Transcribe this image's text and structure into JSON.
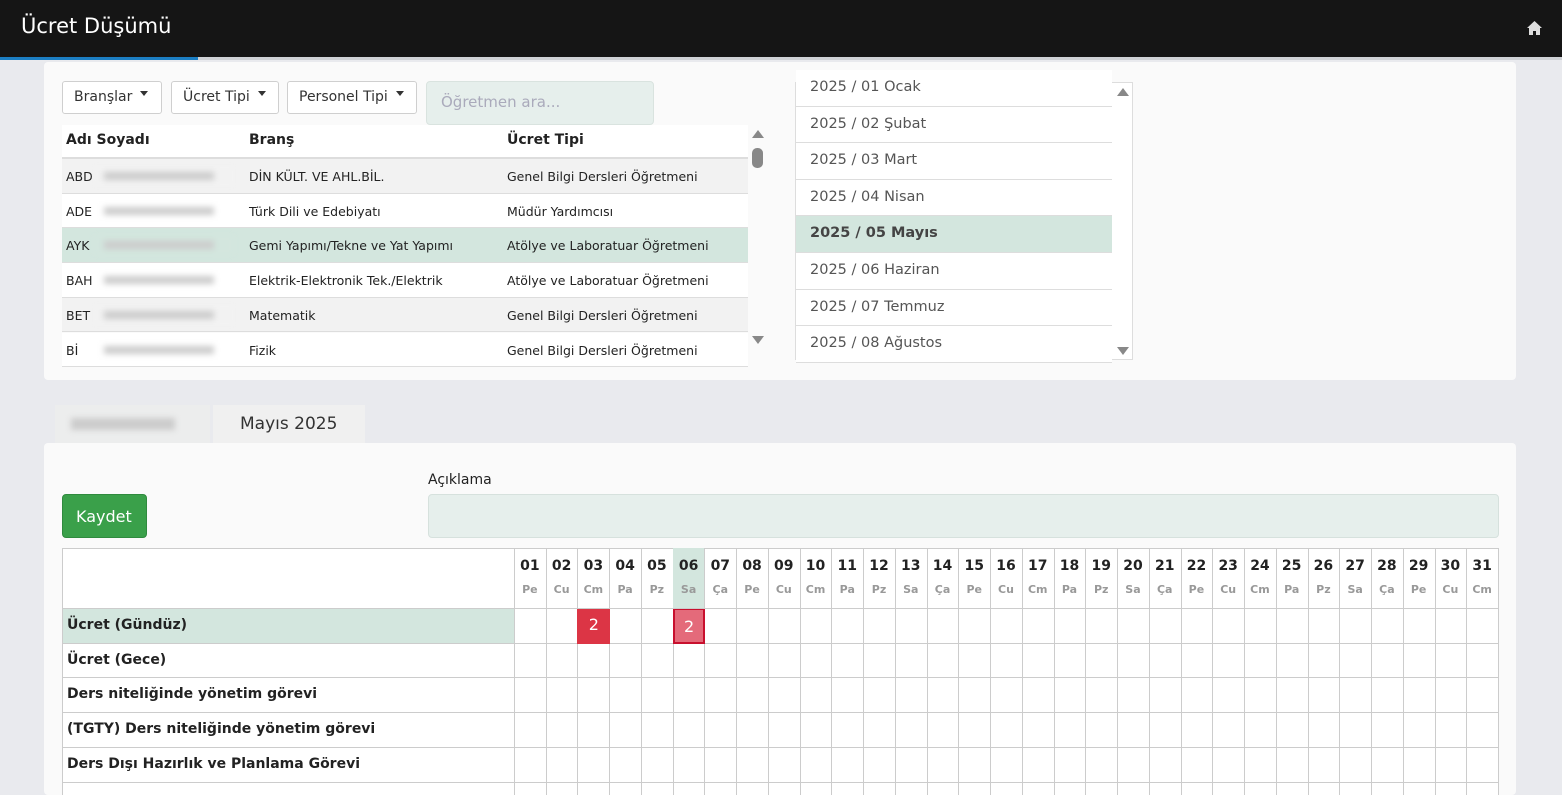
{
  "header": {
    "title": "Ücret Düşümü"
  },
  "filters": {
    "dropdowns": [
      "Branşlar",
      "Ücret Tipi",
      "Personel Tipi"
    ],
    "search_placeholder": "Öğretmen ara..."
  },
  "teachers": {
    "columns": [
      "Adı Soyadı",
      "Branş",
      "Ücret Tipi"
    ],
    "selected": 2,
    "rows": [
      [
        "ABD",
        "DİN KÜLT. VE AHL.BİL.",
        "Genel Bilgi Dersleri Öğretmeni"
      ],
      [
        "ADE",
        "Türk Dili ve Edebiyatı",
        "Müdür Yardımcısı"
      ],
      [
        "AYK",
        "Gemi Yapımı/Tekne ve Yat Yapımı",
        "Atölye ve Laboratuar Öğretmeni"
      ],
      [
        "BAH",
        "Elektrik-Elektronik Tek./Elektrik",
        "Atölye ve Laboratuar Öğretmeni"
      ],
      [
        "BET",
        "Matematik",
        "Genel Bilgi Dersleri Öğretmeni"
      ],
      [
        "Bİ",
        "Fizik",
        "Genel Bilgi Dersleri Öğretmeni"
      ]
    ]
  },
  "months": {
    "selected": 4,
    "items": [
      "2025 / 01 Ocak",
      "2025 / 02 Şubat",
      "2025 / 03 Mart",
      "2025 / 04 Nisan",
      "2025 / 05 Mayıs",
      "2025 / 06 Haziran",
      "2025 / 07 Temmuz",
      "2025 / 08 Ağustos"
    ]
  },
  "tabs": [
    "Mayıs 2025"
  ],
  "form": {
    "description_label": "Açıklama",
    "save_button": "Kaydet"
  },
  "grid": {
    "days": [
      "01",
      "02",
      "03",
      "04",
      "05",
      "06",
      "07",
      "08",
      "09",
      "10",
      "11",
      "12",
      "13",
      "14",
      "15",
      "16",
      "17",
      "18",
      "19",
      "20",
      "21",
      "22",
      "23",
      "24",
      "25",
      "26",
      "27",
      "28",
      "29",
      "30",
      "31"
    ],
    "weekdays": [
      "Pe",
      "Cu",
      "Cm",
      "Pa",
      "Pz",
      "Sa",
      "Ça",
      "Pe",
      "Cu",
      "Cm",
      "Pa",
      "Pz",
      "Sa",
      "Ça",
      "Pe",
      "Cu",
      "Cm",
      "Pa",
      "Pz",
      "Sa",
      "Ça",
      "Pe",
      "Cu",
      "Cm",
      "Pa",
      "Pz",
      "Sa",
      "Ça",
      "Pe",
      "Cu",
      "Cm"
    ],
    "selected_row": 0,
    "rows": [
      {
        "label": "Ücret (Gündüz)",
        "values": [
          null,
          null,
          2,
          null,
          null,
          2,
          null,
          null,
          null,
          null,
          null,
          null,
          null,
          null,
          null,
          null,
          null,
          null,
          null,
          null,
          null,
          null,
          null,
          null,
          null,
          null,
          null,
          null,
          null,
          null,
          null
        ]
      },
      {
        "label": "Ücret (Gece)",
        "values": [
          null,
          null,
          null,
          null,
          null,
          null,
          null,
          null,
          null,
          null,
          null,
          null,
          null,
          null,
          null,
          null,
          null,
          null,
          null,
          null,
          null,
          null,
          null,
          null,
          null,
          null,
          null,
          null,
          null,
          null,
          null
        ]
      },
      {
        "label": "Ders niteliğinde yönetim görevi",
        "values": [
          null,
          null,
          null,
          null,
          null,
          null,
          null,
          null,
          null,
          null,
          null,
          null,
          null,
          null,
          null,
          null,
          null,
          null,
          null,
          null,
          null,
          null,
          null,
          null,
          null,
          null,
          null,
          null,
          null,
          null,
          null
        ]
      },
      {
        "label": "(TGTY) Ders niteliğinde yönetim görevi",
        "values": [
          null,
          null,
          null,
          null,
          null,
          null,
          null,
          null,
          null,
          null,
          null,
          null,
          null,
          null,
          null,
          null,
          null,
          null,
          null,
          null,
          null,
          null,
          null,
          null,
          null,
          null,
          null,
          null,
          null,
          null,
          null
        ]
      },
      {
        "label": "Ders Dışı Hazırlık ve Planlama Görevi",
        "values": [
          null,
          null,
          null,
          null,
          null,
          null,
          null,
          null,
          null,
          null,
          null,
          null,
          null,
          null,
          null,
          null,
          null,
          null,
          null,
          null,
          null,
          null,
          null,
          null,
          null,
          null,
          null,
          null,
          null,
          null,
          null
        ]
      }
    ]
  }
}
